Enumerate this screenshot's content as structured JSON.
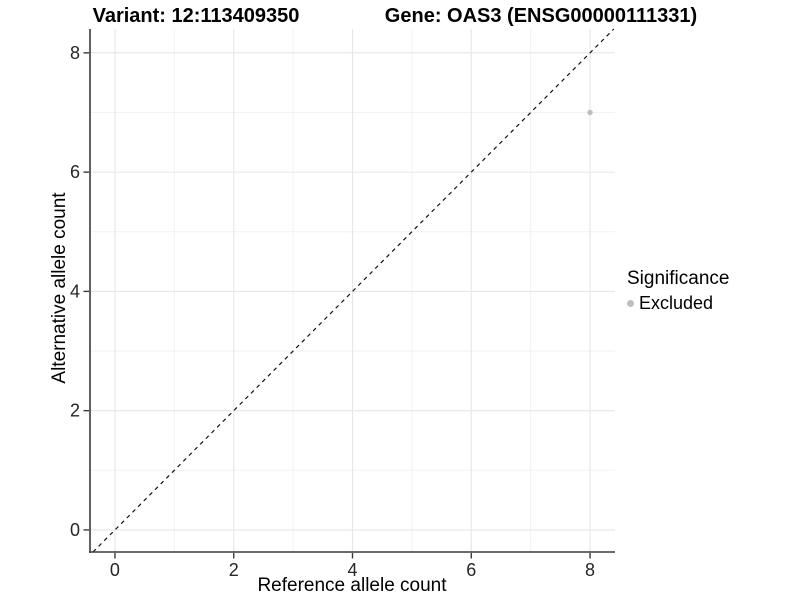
{
  "titles": {
    "left": "Variant: 12:113409350",
    "right": "Gene: OAS3 (ENSG00000111331)"
  },
  "chart_data": {
    "type": "scatter",
    "title_left": "Variant: 12:113409350",
    "title_right": "Gene: OAS3 (ENSG00000111331)",
    "xlabel": "Reference allele count",
    "ylabel": "Alternative allele count",
    "xlim": [
      -0.42,
      8.42
    ],
    "ylim": [
      -0.37,
      8.4
    ],
    "x_ticks": [
      0,
      2,
      4,
      6,
      8
    ],
    "y_ticks": [
      0,
      2,
      4,
      6,
      8
    ],
    "x_minor_ticks": [
      1,
      3,
      5,
      7
    ],
    "y_minor_ticks": [
      1,
      3,
      5,
      7
    ],
    "points": [
      {
        "x": 8,
        "y": 7,
        "series": "Excluded"
      }
    ],
    "reference_line": {
      "kind": "identity",
      "slope": 1,
      "intercept": 0,
      "style": "dashed"
    },
    "legend": {
      "title": "Significance",
      "position": "right",
      "entries": [
        {
          "label": "Excluded",
          "color": "#bebebe"
        }
      ]
    },
    "grid": "on",
    "colors": {
      "point_excluded": "#bebebe",
      "grid_major": "#e6e6e6",
      "grid_minor": "#f2f2f2",
      "axis_line": "#3a3a3a",
      "dashed_line": "#111111",
      "tick_label": "#262626"
    }
  }
}
